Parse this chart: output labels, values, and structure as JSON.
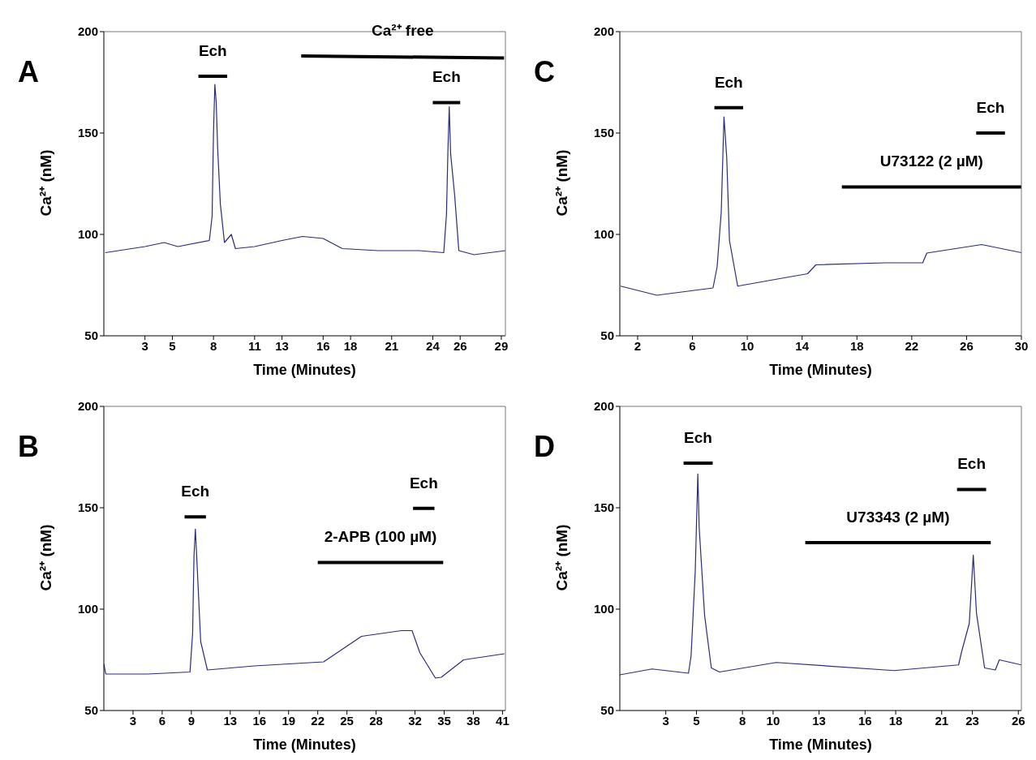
{
  "chart_data": [
    {
      "type": "line",
      "title": "A",
      "xlabel": "Time (Minutes)",
      "ylabel": "Ca²⁺ (nM)",
      "xlim": [
        0,
        29.3
      ],
      "ylim": [
        50,
        200
      ],
      "yticks": [
        50,
        100,
        150,
        200
      ],
      "xticks": [
        3,
        5,
        8,
        11,
        13,
        16,
        18,
        21,
        24,
        26,
        29
      ],
      "marker": "none",
      "line_style": "solid",
      "series": [
        {
          "color": "#2b2b7a",
          "x": [
            0.1,
            3.0,
            4.4,
            5.4,
            7.7,
            7.9,
            8.0,
            8.1,
            8.2,
            8.3,
            8.5,
            8.8,
            9.3,
            9.6,
            11,
            13,
            14.5,
            16,
            17.4,
            20,
            23,
            24.8,
            25.0,
            25.1,
            25.2,
            25.3,
            25.6,
            25.9,
            27,
            29.3
          ],
          "values": [
            91,
            94,
            96,
            94,
            97,
            109,
            150,
            174,
            165,
            143,
            115,
            96,
            100,
            93,
            94,
            97,
            99,
            98,
            93,
            92,
            92,
            91,
            110,
            140,
            163,
            140,
            119,
            92,
            90,
            92
          ]
        },
        {
          "color": "#000000",
          "x": [
            6.9,
            9.0
          ],
          "values": [
            178,
            178
          ]
        },
        {
          "color": "#000000",
          "x": [
            24.0,
            26.0
          ],
          "values": [
            165,
            165
          ]
        },
        {
          "color": "#000000",
          "x": [
            14.4,
            29.2
          ],
          "values": [
            188,
            187
          ]
        }
      ],
      "annotations": [
        "Ech",
        "Ech",
        "Ca²⁺ free"
      ]
    },
    {
      "type": "line",
      "title": "C",
      "xlabel": "Time (Minutes)",
      "ylabel": "Ca²⁺ (nM)",
      "xlim": [
        0.7,
        30
      ],
      "ylim": [
        50,
        200
      ],
      "yticks": [
        50,
        100,
        150,
        200
      ],
      "xticks": [
        2,
        6,
        10,
        14,
        18,
        22,
        26,
        30
      ],
      "marker": "none",
      "line_style": "solid",
      "series": [
        {
          "color": "#2b2b7a",
          "x": [
            0.76,
            3.4,
            7.5,
            7.8,
            8.1,
            8.3,
            8.5,
            8.7,
            9.3,
            12.2,
            14.4,
            15.0,
            20.1,
            22.8,
            23.1,
            27.1,
            30
          ],
          "values": [
            74.5,
            70,
            73.6,
            84,
            111,
            158,
            138,
            97,
            74.5,
            78,
            80.6,
            85,
            86,
            86,
            90.8,
            95,
            91
          ]
        },
        {
          "color": "#000000",
          "x": [
            7.6,
            9.7
          ],
          "values": [
            162.5,
            162.5
          ]
        },
        {
          "color": "#000000",
          "x": [
            26.7,
            28.8
          ],
          "values": [
            150,
            150
          ]
        },
        {
          "color": "#000000",
          "x": [
            16.9,
            30
          ],
          "values": [
            123.4,
            123.4
          ]
        }
      ],
      "annotations": [
        "Ech",
        "Ech",
        "U73122  (2 µM)"
      ]
    },
    {
      "type": "line",
      "title": "B",
      "xlabel": "Time (Minutes)",
      "ylabel": "Ca²⁺ (nM)",
      "xlim": [
        0,
        41.3
      ],
      "ylim": [
        50,
        200
      ],
      "yticks": [
        50,
        100,
        150,
        200
      ],
      "xticks": [
        3,
        6,
        9,
        13,
        16,
        19,
        22,
        25,
        28,
        32,
        35,
        38,
        41
      ],
      "marker": "none",
      "line_style": "solid",
      "series": [
        {
          "color": "#2b2b7a",
          "x": [
            0,
            0.2,
            4.5,
            8.86,
            9.13,
            9.27,
            9.41,
            9.55,
            9.96,
            10.65,
            15.47,
            22.6,
            26.5,
            30.6,
            31.7,
            32.5,
            34.1,
            34.7,
            37.0,
            41.2
          ],
          "values": [
            73,
            68,
            68,
            69,
            88,
            126,
            139.5,
            126,
            84,
            70,
            72,
            74,
            86.6,
            89.4,
            89.4,
            78.5,
            66,
            66.4,
            75,
            78
          ]
        },
        {
          "color": "#000000",
          "x": [
            8.3,
            10.5
          ],
          "values": [
            145.5,
            145.5
          ]
        },
        {
          "color": "#000000",
          "x": [
            31.8,
            34.0
          ],
          "values": [
            149.7,
            149.7
          ]
        },
        {
          "color": "#000000",
          "x": [
            22.0,
            34.9
          ],
          "values": [
            123,
            123
          ]
        }
      ],
      "annotations": [
        "Ech",
        "Ech",
        "2-APB  (100 µM)"
      ]
    },
    {
      "type": "line",
      "title": "D",
      "xlabel": "Time (Minutes)",
      "ylabel": "Ca²⁺ (nM)",
      "xlim": [
        0,
        26.2
      ],
      "ylim": [
        50,
        200
      ],
      "yticks": [
        50,
        100,
        150,
        200
      ],
      "xticks": [
        3,
        5,
        8,
        10,
        13,
        16,
        18,
        21,
        23,
        26
      ],
      "marker": "none",
      "line_style": "solid",
      "series": [
        {
          "color": "#2b2b7a",
          "x": [
            0,
            2.1,
            4.48,
            4.65,
            4.92,
            5.09,
            5.18,
            5.53,
            5.97,
            6.5,
            10.2,
            17.9,
            22.1,
            22.3,
            22.8,
            23.06,
            23.27,
            23.8,
            24.5,
            24.76,
            26.2
          ],
          "values": [
            67.6,
            70.5,
            68.4,
            77,
            118.5,
            166.7,
            140,
            97,
            71,
            69,
            73.7,
            69.7,
            72.5,
            79,
            93,
            126.7,
            98,
            71,
            70,
            75,
            72.5
          ]
        },
        {
          "color": "#000000",
          "x": [
            4.16,
            6.06
          ],
          "values": [
            172,
            172
          ]
        },
        {
          "color": "#000000",
          "x": [
            22.0,
            23.9
          ],
          "values": [
            159,
            159
          ]
        },
        {
          "color": "#000000",
          "x": [
            12.1,
            24.2
          ],
          "values": [
            132.8,
            132.8
          ]
        }
      ],
      "annotations": [
        "Ech",
        "Ech",
        "U73343  (2 µM)"
      ]
    }
  ]
}
